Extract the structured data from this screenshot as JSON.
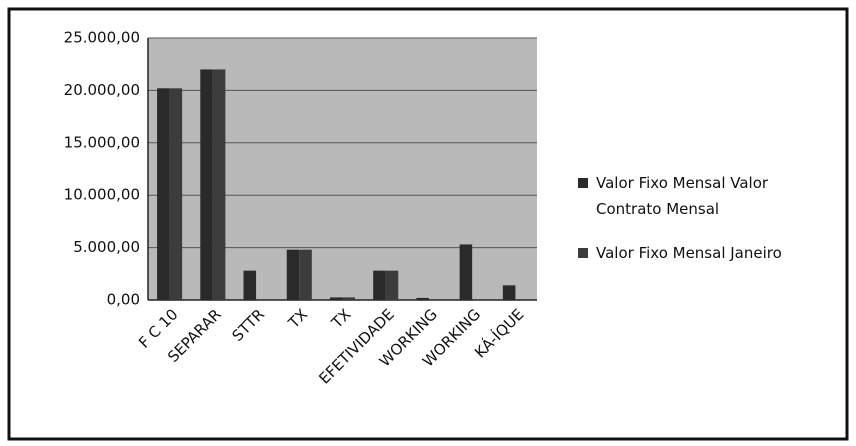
{
  "chart_data": {
    "type": "bar",
    "categories": [
      "F C 10",
      "SEPARAR",
      "STTR",
      "TX",
      "TX",
      "EFETIVIDADE",
      "WORKING",
      "WORKING",
      "KÁ-ÍQUE"
    ],
    "series": [
      {
        "name": "Valor Fixo Mensal Valor Contrato Mensal",
        "color": "#2a2a2a",
        "values": [
          20200,
          22000,
          2800,
          4800,
          250,
          2800,
          200,
          5300,
          1400
        ]
      },
      {
        "name": "Valor Fixo Mensal Janeiro",
        "color": "#3c3c3c",
        "values": [
          20200,
          22000,
          0,
          4800,
          250,
          2800,
          0,
          0,
          0
        ]
      }
    ],
    "ylim": [
      0,
      25000
    ],
    "yticks": [
      {
        "value": 0,
        "label": "0,00"
      },
      {
        "value": 5000,
        "label": "5.000,00"
      },
      {
        "value": 10000,
        "label": "10.000,00"
      },
      {
        "value": 15000,
        "label": "15.000,00"
      },
      {
        "value": 20000,
        "label": "20.000,00"
      },
      {
        "value": 25000,
        "label": "25.000,00"
      }
    ],
    "grid": true
  }
}
